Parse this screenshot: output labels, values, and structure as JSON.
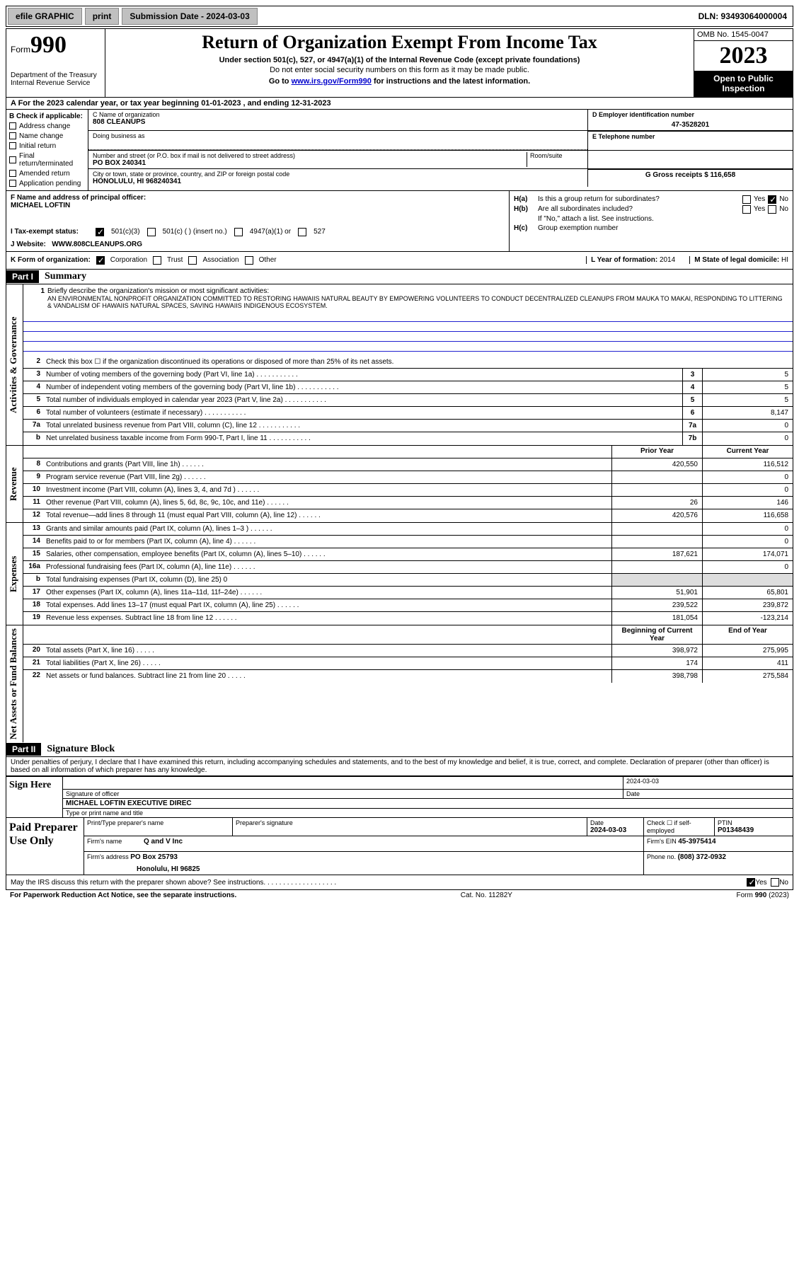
{
  "toolbar": {
    "efile": "efile GRAPHIC",
    "print": "print",
    "subdate_label": "Submission Date - 2024-03-03",
    "dln": "DLN: 93493064000004"
  },
  "header": {
    "form_label": "Form",
    "form_num": "990",
    "dept": "Department of the Treasury\nInternal Revenue Service",
    "title": "Return of Organization Exempt From Income Tax",
    "sub1": "Under section 501(c), 527, or 4947(a)(1) of the Internal Revenue Code (except private foundations)",
    "sub2": "Do not enter social security numbers on this form as it may be made public.",
    "sub3_pre": "Go to ",
    "sub3_link": "www.irs.gov/Form990",
    "sub3_post": " for instructions and the latest information.",
    "omb": "OMB No. 1545-0047",
    "year": "2023",
    "inspect": "Open to Public Inspection"
  },
  "row_a": "A For the 2023 calendar year, or tax year beginning 01-01-2023    , and ending 12-31-2023",
  "b": {
    "title": "B Check if applicable:",
    "items": [
      "Address change",
      "Name change",
      "Initial return",
      "Final return/terminated",
      "Amended return",
      "Application pending"
    ]
  },
  "c": {
    "name_lbl": "C Name of organization",
    "name": "808 CLEANUPS",
    "dba_lbl": "Doing business as",
    "addr_lbl": "Number and street (or P.O. box if mail is not delivered to street address)",
    "room_lbl": "Room/suite",
    "addr": "PO BOX 240341",
    "city_lbl": "City or town, state or province, country, and ZIP or foreign postal code",
    "city": "HONOLULU, HI  968240341"
  },
  "d": {
    "lbl": "D Employer identification number",
    "val": "47-3528201"
  },
  "e": {
    "lbl": "E Telephone number",
    "val": ""
  },
  "g": {
    "lbl": "G Gross receipts $",
    "val": "116,658"
  },
  "f": {
    "lbl": "F Name and address of principal officer:",
    "name": "MICHAEL LOFTIN"
  },
  "h": {
    "a_lbl": "H(a)",
    "a_text": "Is this a group return for subordinates?",
    "b_lbl": "H(b)",
    "b_text": "Are all subordinates included?",
    "b_note": "If \"No,\" attach a list. See instructions.",
    "c_lbl": "H(c)",
    "c_text": "Group exemption number",
    "yes": "Yes",
    "no": "No"
  },
  "i": {
    "lbl": "I    Tax-exempt status:",
    "opts": [
      "501(c)(3)",
      "501(c) (   ) (insert no.)",
      "4947(a)(1) or",
      "527"
    ]
  },
  "j": {
    "lbl": "J    Website:",
    "val": "WWW.808CLEANUPS.ORG"
  },
  "k": {
    "lbl": "K Form of organization:",
    "opts": [
      "Corporation",
      "Trust",
      "Association",
      "Other"
    ],
    "l_lbl": "L Year of formation:",
    "l_val": "2014",
    "m_lbl": "M State of legal domicile:",
    "m_val": "HI"
  },
  "part1": {
    "hdr": "Part I",
    "title": "Summary"
  },
  "vtabs": {
    "gov": "Activities & Governance",
    "rev": "Revenue",
    "exp": "Expenses",
    "net": "Net Assets or Fund Balances"
  },
  "line1": {
    "num": "1",
    "text": "Briefly describe the organization's mission or most significant activities:",
    "mission": "AN ENVIRONMENTAL NONPROFIT ORGANIZATION COMMITTED TO RESTORING HAWAIIS NATURAL BEAUTY BY EMPOWERING VOLUNTEERS TO CONDUCT DECENTRALIZED CLEANUPS FROM MAUKA TO MAKAI, RESPONDING TO LITTERING & VANDALISM OF HAWAIIS NATURAL SPACES, SAVING HAWAIIS INDIGENOUS ECOSYSTEM."
  },
  "lines_gov": [
    {
      "n": "2",
      "t": "Check this box ☐ if the organization discontinued its operations or disposed of more than 25% of its net assets."
    },
    {
      "n": "3",
      "t": "Number of voting members of the governing body (Part VI, line 1a)",
      "box": "3",
      "v": "5"
    },
    {
      "n": "4",
      "t": "Number of independent voting members of the governing body (Part VI, line 1b)",
      "box": "4",
      "v": "5"
    },
    {
      "n": "5",
      "t": "Total number of individuals employed in calendar year 2023 (Part V, line 2a)",
      "box": "5",
      "v": "5"
    },
    {
      "n": "6",
      "t": "Total number of volunteers (estimate if necessary)",
      "box": "6",
      "v": "8,147"
    },
    {
      "n": "7a",
      "t": "Total unrelated business revenue from Part VIII, column (C), line 12",
      "box": "7a",
      "v": "0"
    },
    {
      "n": "b",
      "t": "Net unrelated business taxable income from Form 990-T, Part I, line 11",
      "box": "7b",
      "v": "0"
    }
  ],
  "col_hdrs": {
    "prior": "Prior Year",
    "curr": "Current Year",
    "beg": "Beginning of Current Year",
    "end": "End of Year"
  },
  "lines_rev": [
    {
      "n": "8",
      "t": "Contributions and grants (Part VIII, line 1h)",
      "p": "420,550",
      "c": "116,512"
    },
    {
      "n": "9",
      "t": "Program service revenue (Part VIII, line 2g)",
      "p": "",
      "c": "0"
    },
    {
      "n": "10",
      "t": "Investment income (Part VIII, column (A), lines 3, 4, and 7d )",
      "p": "",
      "c": "0"
    },
    {
      "n": "11",
      "t": "Other revenue (Part VIII, column (A), lines 5, 6d, 8c, 9c, 10c, and 11e)",
      "p": "26",
      "c": "146"
    },
    {
      "n": "12",
      "t": "Total revenue—add lines 8 through 11 (must equal Part VIII, column (A), line 12)",
      "p": "420,576",
      "c": "116,658"
    }
  ],
  "lines_exp": [
    {
      "n": "13",
      "t": "Grants and similar amounts paid (Part IX, column (A), lines 1–3 )",
      "p": "",
      "c": "0"
    },
    {
      "n": "14",
      "t": "Benefits paid to or for members (Part IX, column (A), line 4)",
      "p": "",
      "c": "0"
    },
    {
      "n": "15",
      "t": "Salaries, other compensation, employee benefits (Part IX, column (A), lines 5–10)",
      "p": "187,621",
      "c": "174,071"
    },
    {
      "n": "16a",
      "t": "Professional fundraising fees (Part IX, column (A), line 11e)",
      "p": "",
      "c": "0"
    },
    {
      "n": "b",
      "t": "Total fundraising expenses (Part IX, column (D), line 25) 0",
      "shade": true
    },
    {
      "n": "17",
      "t": "Other expenses (Part IX, column (A), lines 11a–11d, 11f–24e)",
      "p": "51,901",
      "c": "65,801"
    },
    {
      "n": "18",
      "t": "Total expenses. Add lines 13–17 (must equal Part IX, column (A), line 25)",
      "p": "239,522",
      "c": "239,872"
    },
    {
      "n": "19",
      "t": "Revenue less expenses. Subtract line 18 from line 12",
      "p": "181,054",
      "c": "-123,214"
    }
  ],
  "lines_net": [
    {
      "n": "20",
      "t": "Total assets (Part X, line 16)",
      "p": "398,972",
      "c": "275,995"
    },
    {
      "n": "21",
      "t": "Total liabilities (Part X, line 26)",
      "p": "174",
      "c": "411"
    },
    {
      "n": "22",
      "t": "Net assets or fund balances. Subtract line 21 from line 20",
      "p": "398,798",
      "c": "275,584"
    }
  ],
  "part2": {
    "hdr": "Part II",
    "title": "Signature Block"
  },
  "perjury": "Under penalties of perjury, I declare that I have examined this return, including accompanying schedules and statements, and to the best of my knowledge and belief, it is true, correct, and complete. Declaration of preparer (other than officer) is based on all information of which preparer has any knowledge.",
  "sign": {
    "lbl": "Sign Here",
    "sig_lbl": "Signature of officer",
    "date_lbl": "Date",
    "date": "2024-03-03",
    "name": "MICHAEL LOFTIN EXECUTIVE DIREC",
    "type_lbl": "Type or print name and title"
  },
  "prep": {
    "lbl": "Paid Preparer Use Only",
    "h1": "Print/Type preparer's name",
    "h2": "Preparer's signature",
    "h3": "Date",
    "date": "2024-03-03",
    "h4": "Check ☐ if self-employed",
    "h5": "PTIN",
    "ptin": "P01348439",
    "firm_lbl": "Firm's name",
    "firm": "Q and V Inc",
    "ein_lbl": "Firm's EIN",
    "ein": "45-3975414",
    "addr_lbl": "Firm's address",
    "addr1": "PO Box 25793",
    "addr2": "Honolulu, HI  96825",
    "phone_lbl": "Phone no.",
    "phone": "(808) 372-0932"
  },
  "discuss": "May the IRS discuss this return with the preparer shown above? See instructions.",
  "footer": {
    "paperwork": "For Paperwork Reduction Act Notice, see the separate instructions.",
    "cat": "Cat. No. 11282Y",
    "form": "Form 990 (2023)"
  }
}
